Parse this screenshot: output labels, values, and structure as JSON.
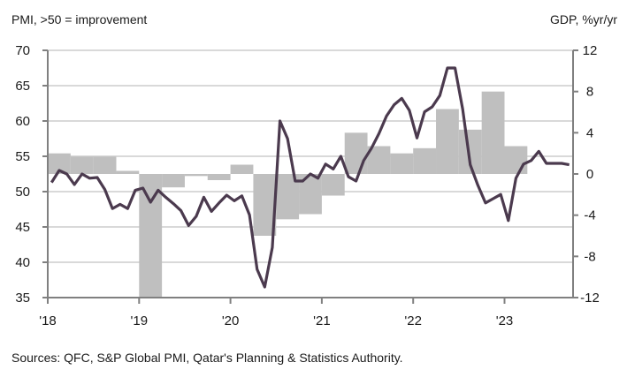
{
  "chart_data": {
    "type": "bar+line",
    "left_axis_label": "PMI, >50 = improvement",
    "right_axis_label": "GDP, %yr/yr",
    "source": "Sources: QFC, S&P Global PMI, Qatar's Planning & Statistics Authority.",
    "left_ylim": [
      35,
      70
    ],
    "left_ticks": [
      "70",
      "65",
      "60",
      "55",
      "50",
      "45",
      "40",
      "35"
    ],
    "left_tick_values": [
      70,
      65,
      60,
      55,
      50,
      45,
      40,
      35
    ],
    "right_ylim": [
      -12,
      12
    ],
    "right_ticks": [
      "12",
      "8",
      "4",
      "0",
      "-4",
      "-8",
      "-12"
    ],
    "right_tick_values": [
      12,
      8,
      4,
      0,
      -4,
      -8,
      -12
    ],
    "x_ticks": [
      "'18",
      "'19",
      "'20",
      "'21",
      "'22",
      "'23"
    ],
    "x_tick_values": [
      2018,
      2019,
      2020,
      2021,
      2022,
      2023
    ],
    "xlim": [
      2018,
      2023.75
    ],
    "grid": true,
    "colors": {
      "line": "#4b3a4e",
      "bars": "#bfbfbf",
      "grid": "#d9d9d9",
      "axis": "#808080"
    },
    "series": [
      {
        "name": "GDP, %yr/yr (quarterly, right axis)",
        "kind": "bar",
        "start": 2018,
        "frequency": "quarterly",
        "values": [
          2.0,
          1.7,
          1.7,
          0.3,
          -12.5,
          -1.3,
          -0.2,
          -0.6,
          0.9,
          -6.0,
          -4.4,
          -3.9,
          -2.1,
          4.0,
          2.7,
          2.0,
          2.5,
          6.3,
          4.3,
          8.0,
          2.7
        ]
      },
      {
        "name": "PMI (monthly, left axis)",
        "kind": "line",
        "start": 2018,
        "frequency": "monthly",
        "values": [
          51.3,
          53.0,
          52.5,
          51.0,
          52.5,
          51.9,
          52.0,
          50.3,
          47.6,
          48.2,
          47.6,
          50.2,
          50.5,
          48.5,
          50.2,
          49.2,
          48.3,
          47.3,
          45.2,
          46.5,
          49.2,
          47.2,
          48.4,
          49.5,
          48.7,
          49.4,
          46.7,
          39.0,
          36.5,
          42.1,
          60.0,
          57.5,
          51.5,
          51.5,
          52.5,
          51.9,
          53.9,
          53.2,
          55.0,
          52.1,
          51.5,
          54.4,
          56.1,
          58.2,
          60.7,
          62.3,
          63.2,
          61.5,
          57.6,
          61.3,
          62.0,
          63.6,
          67.5,
          67.5,
          61.7,
          53.8,
          50.9,
          48.4,
          49.0,
          49.6,
          45.9,
          51.9,
          53.9,
          54.4,
          55.7,
          54.0,
          54.0,
          54.0,
          53.8
        ]
      }
    ]
  }
}
